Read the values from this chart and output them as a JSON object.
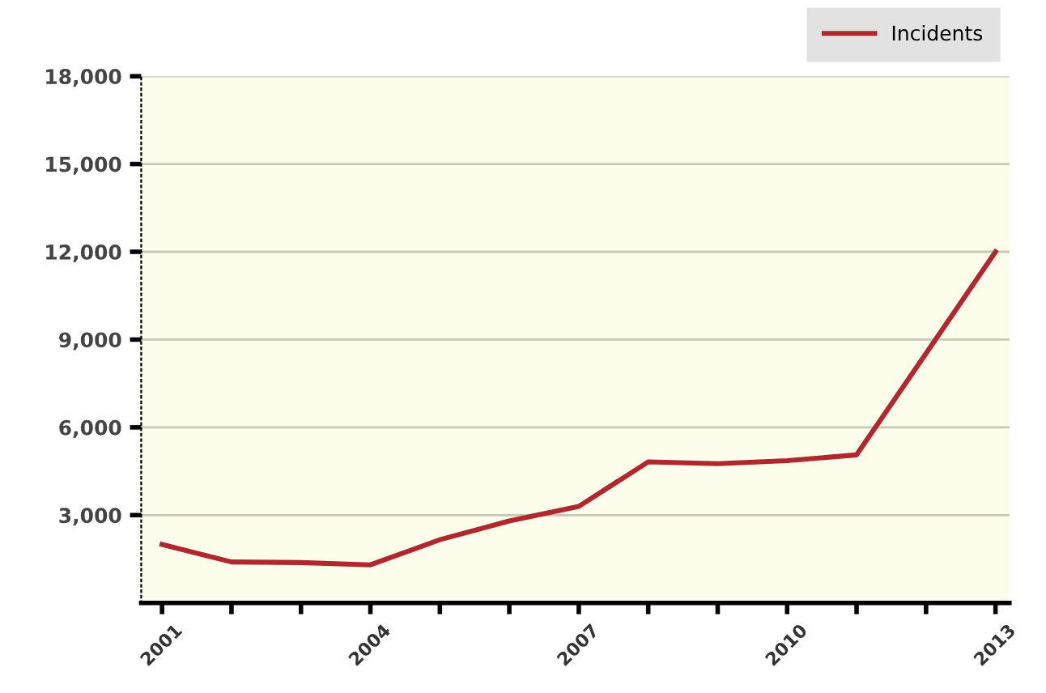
{
  "chart_data": {
    "type": "line",
    "x": [
      2001,
      2002,
      2003,
      2004,
      2005,
      2006,
      2007,
      2008,
      2009,
      2010,
      2011,
      2012,
      2013
    ],
    "series": [
      {
        "name": "Incidents",
        "color": "#b0282e",
        "values": [
          2000,
          1400,
          1380,
          1300,
          2160,
          2800,
          3300,
          4820,
          4760,
          4860,
          5060,
          8530,
          12000
        ]
      }
    ],
    "xlim": [
      2000.7,
      2013.2
    ],
    "xticks": [
      2001,
      {
        "value": 2002,
        "label": null
      },
      {
        "value": 2003,
        "label": null
      },
      2004,
      {
        "value": 2005,
        "label": null
      },
      {
        "value": 2006,
        "label": null
      },
      2007,
      {
        "value": 2008,
        "label": null
      },
      {
        "value": 2009,
        "label": null
      },
      2010,
      {
        "value": 2011,
        "label": null
      },
      {
        "value": 2012,
        "label": null
      },
      2013
    ],
    "ylim": [
      0,
      18000
    ],
    "yticks": [
      {
        "value": 3000,
        "label": "3,000"
      },
      {
        "value": 6000,
        "label": "6,000"
      },
      {
        "value": 9000,
        "label": "9,000"
      },
      {
        "value": 12000,
        "label": "12,000"
      },
      {
        "value": 15000,
        "label": "15,000"
      },
      {
        "value": 18000,
        "label": "18,000"
      }
    ],
    "grid": "y",
    "legend": "top right",
    "marker": "none",
    "line_style": "solid"
  }
}
